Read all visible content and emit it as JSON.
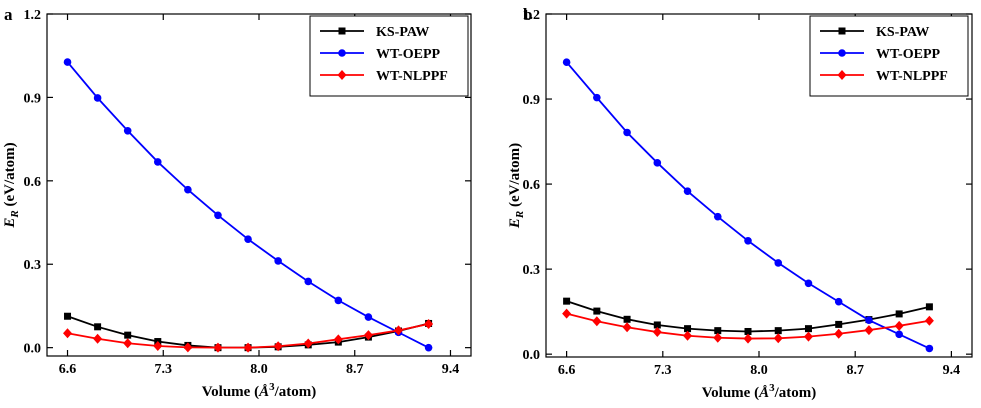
{
  "chart_data": [
    {
      "type": "line",
      "panel_label": "a",
      "xlabel_main": "Volume (",
      "xlabel_unit": "Å",
      "xlabel_sup": "3",
      "xlabel_tail": "/atom)",
      "ylabel_main": "E",
      "ylabel_sub": "R",
      "ylabel_tail": " (eV/atom)",
      "xlim": [
        6.45,
        9.55
      ],
      "ylim": [
        -0.03,
        1.2
      ],
      "xticks": [
        "6.6",
        "7.3",
        "8.0",
        "8.7",
        "9.4"
      ],
      "yticks": [
        "0.0",
        "0.3",
        "0.6",
        "0.9",
        "1.2"
      ],
      "legend_position": "top-right",
      "x": [
        6.6,
        6.82,
        7.04,
        7.26,
        7.48,
        7.7,
        7.92,
        8.14,
        8.36,
        8.58,
        8.8,
        9.02,
        9.24
      ],
      "series": [
        {
          "name": "KS-PAW",
          "color": "#000000",
          "marker": "square",
          "values": [
            0.113,
            0.075,
            0.045,
            0.022,
            0.008,
            0.0,
            0.0,
            0.003,
            0.01,
            0.02,
            0.038,
            0.06,
            0.087
          ]
        },
        {
          "name": "WT-OEPP",
          "color": "#0000ff",
          "marker": "circle",
          "values": [
            1.027,
            0.898,
            0.78,
            0.668,
            0.568,
            0.476,
            0.39,
            0.312,
            0.238,
            0.17,
            0.11,
            0.055,
            0.0
          ]
        },
        {
          "name": "WT-NLPPF",
          "color": "#ff0000",
          "marker": "diamond",
          "values": [
            0.052,
            0.032,
            0.016,
            0.006,
            0.001,
            0.0,
            0.0,
            0.005,
            0.015,
            0.03,
            0.045,
            0.062,
            0.085
          ]
        }
      ]
    },
    {
      "type": "line",
      "panel_label": "b",
      "xlabel_main": "Volume (",
      "xlabel_unit": "Å",
      "xlabel_sup": "3",
      "xlabel_tail": "/atom)",
      "ylabel_main": "E",
      "ylabel_sub": "R",
      "ylabel_tail": " (eV/atom)",
      "xlim": [
        6.45,
        9.55
      ],
      "ylim": [
        -0.01,
        1.2
      ],
      "xticks": [
        "6.6",
        "7.3",
        "8.0",
        "8.7",
        "9.4"
      ],
      "yticks": [
        "0.0",
        "0.3",
        "0.6",
        "0.9",
        "1.2"
      ],
      "legend_position": "top-right",
      "x": [
        6.6,
        6.82,
        7.04,
        7.26,
        7.48,
        7.7,
        7.92,
        8.14,
        8.36,
        8.58,
        8.8,
        9.02,
        9.24
      ],
      "series": [
        {
          "name": "KS-PAW",
          "color": "#000000",
          "marker": "square",
          "values": [
            0.187,
            0.152,
            0.123,
            0.103,
            0.09,
            0.083,
            0.08,
            0.083,
            0.09,
            0.105,
            0.122,
            0.142,
            0.167
          ]
        },
        {
          "name": "WT-OEPP",
          "color": "#0000ff",
          "marker": "circle",
          "values": [
            1.03,
            0.905,
            0.782,
            0.675,
            0.575,
            0.485,
            0.4,
            0.322,
            0.25,
            0.185,
            0.12,
            0.07,
            0.02
          ]
        },
        {
          "name": "WT-NLPPF",
          "color": "#ff0000",
          "marker": "diamond",
          "values": [
            0.143,
            0.116,
            0.095,
            0.078,
            0.065,
            0.058,
            0.055,
            0.056,
            0.062,
            0.072,
            0.085,
            0.1,
            0.118
          ]
        }
      ]
    }
  ]
}
